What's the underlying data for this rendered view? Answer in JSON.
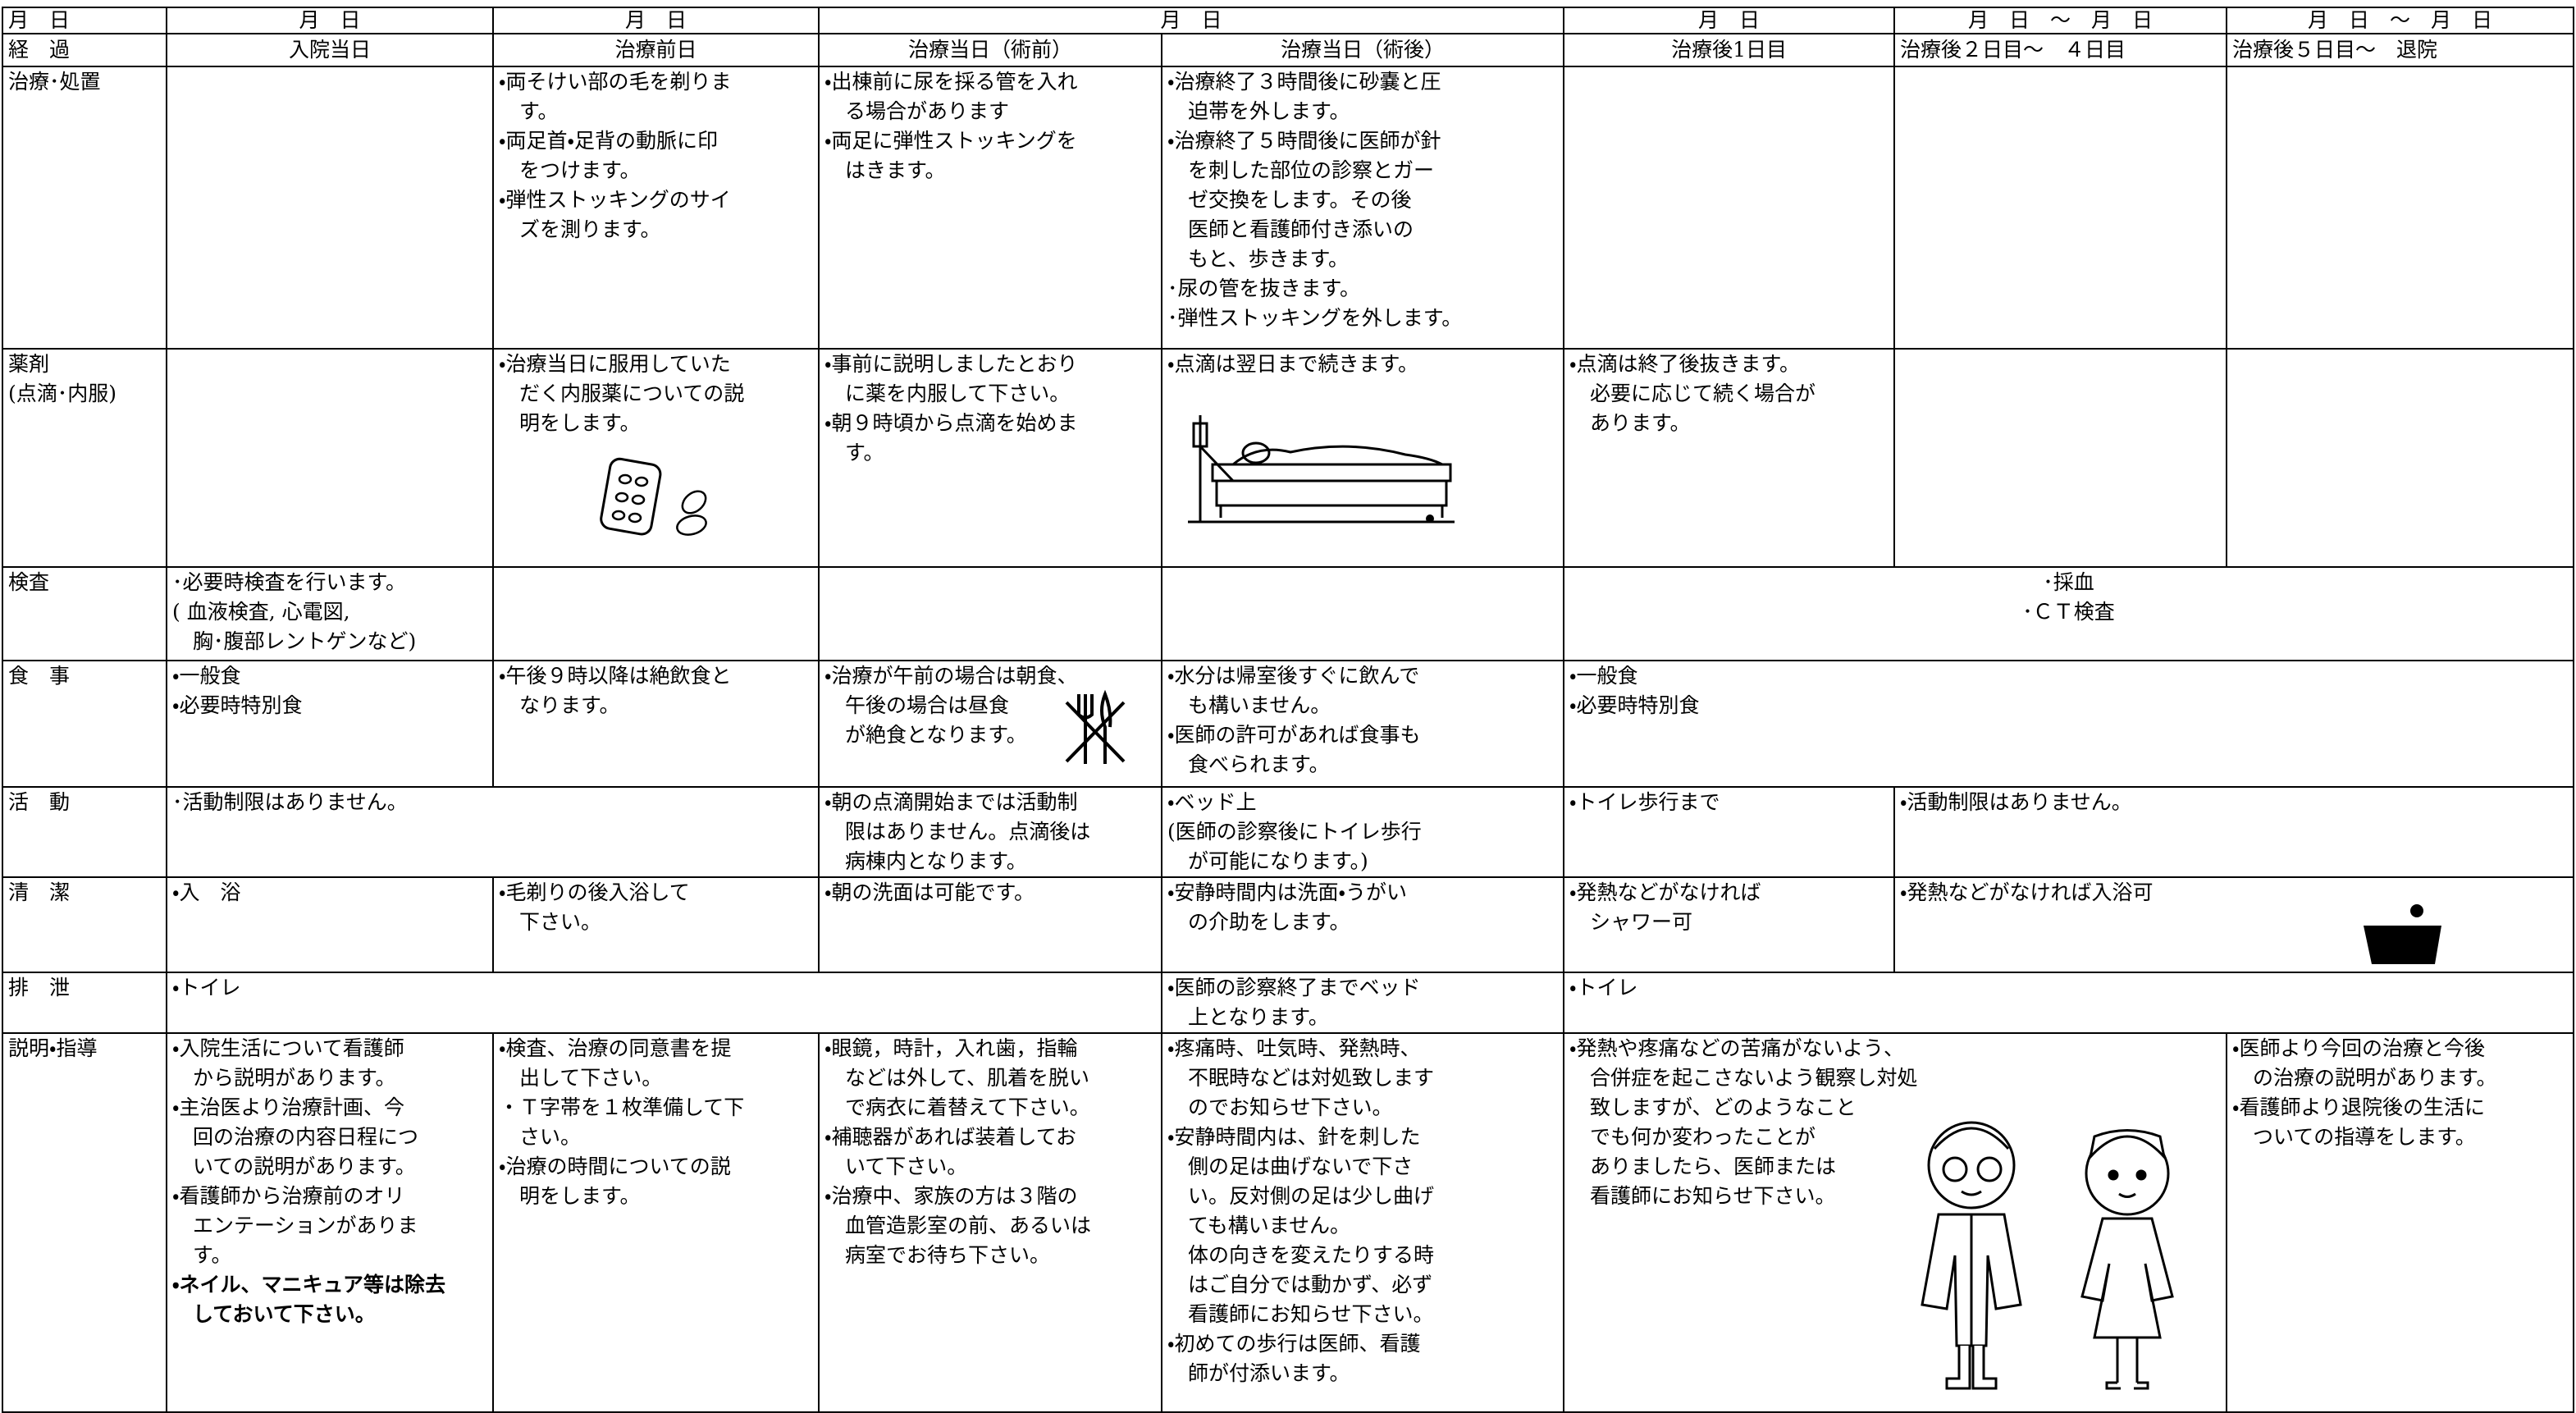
{
  "header": {
    "dates": [
      "月　日",
      "月　日",
      "月　日",
      "月　日",
      "月　日",
      "月　日　～　月　日",
      "月　日　～　月　日"
    ],
    "stage_label": "経　過",
    "stages": [
      "入院当日",
      "治療前日",
      "治療当日（術前）",
      "治療当日（術後）",
      "治療後1日目",
      "治療後２日目～　４日目",
      "治療後５日目～　退院"
    ]
  },
  "table": {
    "rows": [
      {
        "label": [
          "治療･処置"
        ],
        "cells": [
          [],
          [
            "・両そけい部の毛を剃りま",
            "す。",
            "・両足首・足背の動脈に印",
            "をつけます。",
            "・弾性ストッキングのサイ",
            "ズを測ります。"
          ],
          [
            "・出棟前に尿を採る管を入れ",
            "る場合があります",
            "・両足に弾性ストッキングを",
            "はきます。"
          ],
          [
            "・治療終了３時間後に砂嚢と圧",
            "迫帯を外します。",
            "・治療終了５時間後に医師が針",
            "を刺した部位の診察とガー",
            "ゼ交換をします。その後",
            "医師と看護師付き添いの",
            "もと、歩きます。",
            "･尿の管を抜きます。",
            "･弾性ストッキングを外します。"
          ],
          [],
          [],
          []
        ]
      },
      {
        "label": [
          "薬剤",
          "(点滴･内服)"
        ],
        "cells": [
          [],
          [
            "・治療当日に服用していた",
            "だく内服薬についての説",
            "明をします。"
          ],
          [
            "・事前に説明しましたとおり",
            "に薬を内服して下さい。",
            "・朝９時頃から点滴を始めま",
            "す。"
          ],
          [
            "・点滴は翌日まで続きます。"
          ],
          [
            "・点滴は終了後抜きます。",
            "必要に応じて続く場合が",
            "あります。"
          ],
          [],
          []
        ]
      },
      {
        "label": [
          "検査"
        ],
        "cells": [
          [
            "･必要時検査を行います。",
            "( 血液検査, 心電図,",
            "胸･腹部レントゲンなど)"
          ],
          [],
          [],
          [],
          [
            "･採血",
            "･ＣＴ検査"
          ]
        ]
      },
      {
        "label": [
          "食　事"
        ],
        "cells": [
          [
            "・一般食",
            "・必要時特別食"
          ],
          [
            "・午後９時以降は絶飲食と",
            "なります。"
          ],
          [
            "・治療が午前の場合は朝食、",
            "午後の場合は昼食",
            "が絶食となります。"
          ],
          [
            "・水分は帰室後すぐに飲んで",
            "も構いません。",
            "・医師の許可があれば食事も",
            "食べられます。"
          ],
          [
            "・一般食",
            "・必要時特別食"
          ]
        ]
      },
      {
        "label": [
          "活　動"
        ],
        "cells": [
          [
            "･活動制限はありません。"
          ],
          [
            "・朝の点滴開始までは活動制",
            "限はありません。点滴後は",
            "病棟内となります。"
          ],
          [
            "・ベッド上",
            "(医師の診察後にトイレ歩行",
            "が可能になります。)"
          ],
          [
            "・トイレ歩行まで"
          ],
          [
            "・活動制限はありません。"
          ]
        ]
      },
      {
        "label": [
          "清　潔"
        ],
        "cells": [
          [
            "・入　浴"
          ],
          [
            "・毛剃りの後入浴して",
            "下さい。"
          ],
          [
            "・朝の洗面は可能です。"
          ],
          [
            "・安静時間内は洗面・うがい",
            "の介助をします。"
          ],
          [
            "・発熱などがなければ",
            "シャワー可"
          ],
          [
            "・発熱などがなければ入浴可"
          ]
        ]
      },
      {
        "label": [
          "排　泄"
        ],
        "cells": [
          [
            "・トイレ"
          ],
          [
            "・医師の診察終了までベッド",
            "上となります。"
          ],
          [
            "・トイレ"
          ]
        ]
      },
      {
        "label": [
          "説明・指導"
        ],
        "cells": [
          [
            "・入院生活について看護師",
            "から説明があります。",
            "・主治医より治療計画、今",
            "回の治療の内容日程につ",
            "いての説明があります。",
            "・看護師から治療前のオリ",
            "エンテーションがありま",
            "す。"
          ],
          [
            "・検査、治療の同意書を提",
            "出して下さい。",
            "・Ｔ字帯を１枚準備して下",
            "さい。",
            "・治療の時間についての説",
            "明をします。"
          ],
          [
            "・眼鏡，時計，入れ歯，指輪",
            "などは外して、肌着を脱い",
            "で病衣に着替えて下さい。",
            "・補聴器があれば装着してお",
            "いて下さい。",
            "・治療中、家族の方は３階の",
            "血管造影室の前、あるいは",
            "病室でお待ち下さい。"
          ],
          [
            "・疼痛時、吐気時、発熱時、",
            "不眠時などは対処致します",
            "のでお知らせ下さい。",
            "・安静時間内は、針を刺した",
            "側の足は曲げないで下さ",
            "い。反対側の足は少し曲げ",
            "ても構いません。",
            "体の向きを変えたりする時",
            "はご自分では動かず、必ず",
            "看護師にお知らせ下さい。",
            "・初めての歩行は医師、看護",
            "師が付添います。"
          ],
          [
            "・発熱や疼痛などの苦痛がないよう、",
            "合併症を起こさないよう観察し対処",
            "致しますが、どのようなこと",
            "でも何か変わったことが",
            "ありましたら、医師または",
            "看護師にお知らせ下さい。"
          ],
          [
            "・医師より今回の治療と今後",
            "の治療の説明があります。",
            "・看護師より退院後の生活に",
            "ついての指導をします。"
          ]
        ],
        "note": [
          "・ネイル、マニキュア等は除去",
          "しておいて下さい。"
        ]
      }
    ]
  }
}
